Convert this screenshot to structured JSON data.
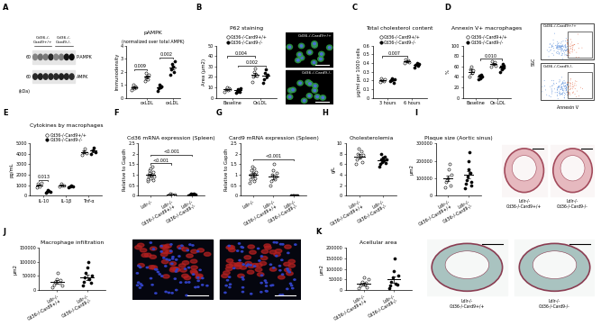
{
  "chart_data": [
    {
      "panel": "A",
      "type": "dotplot",
      "title": "pAMPK",
      "subtitle": "(normalized over total AMPK)",
      "y_label": "Immunodensity",
      "marker": "circle",
      "categories": [
        null,
        "oxLDL",
        null,
        "oxLDL"
      ],
      "series": [
        {
          "colors": [
            "#ffffff",
            "#ffffff",
            "#000000",
            "#000000"
          ],
          "values": [
            0.8,
            1.6,
            0.8,
            2.3
          ],
          "error": [
            0.06,
            0.1,
            0.07,
            0.15
          ],
          "points": [
            [
              0.6,
              0.8,
              1.0,
              0.7,
              0.9,
              0.8
            ],
            [
              1.3,
              1.5,
              1.9,
              1.6,
              1.4,
              1.8
            ],
            [
              0.5,
              0.7,
              1.0,
              0.8,
              0.9,
              0.9
            ],
            [
              1.8,
              2.2,
              2.6,
              2.4,
              2.0,
              2.8
            ]
          ]
        }
      ],
      "ylim": [
        0,
        4
      ],
      "yticks": [
        0,
        1,
        2,
        3,
        4
      ],
      "comparisons": [
        {
          "bars": [
            0,
            1
          ],
          "y": 2.2,
          "label": "0.009"
        },
        {
          "bars": [
            2,
            3
          ],
          "y": 3.1,
          "label": "0.002"
        }
      ],
      "image_labels": {
        "lanes": [
          "Cd36-/-\nCard9+/+",
          "Cd36-/-\nCard9-/-"
        ],
        "markers": [
          "60",
          "60"
        ],
        "bands": [
          "P-AMPK",
          "AMPK"
        ],
        "unit": "(kDa)"
      }
    },
    {
      "panel": "B",
      "type": "dotplot",
      "title": "P62 staining",
      "y_label": "Area (µm2)",
      "marker": "circle",
      "legend": "top",
      "categories": [
        "Baseline",
        "OxLDL"
      ],
      "series": [
        {
          "name": "Cd36-/-Card9+/+",
          "color": "#ffffff",
          "values": [
            8,
            22
          ],
          "error": [
            0.7,
            2
          ],
          "points": [
            [
              6,
              8,
              10,
              7,
              9,
              8
            ],
            [
              15,
              20,
              25,
              28,
              22,
              21
            ]
          ]
        },
        {
          "name": "Cd36-/-Card9-/-",
          "color": "#000000",
          "values": [
            7,
            21
          ],
          "error": [
            0.6,
            2.2
          ],
          "points": [
            [
              5,
              6,
              8,
              7,
              6,
              9
            ],
            [
              14,
              18,
              24,
              27,
              20,
              22
            ]
          ]
        }
      ],
      "ylim": [
        0,
        50
      ],
      "yticks": [
        0,
        10,
        20,
        30,
        40,
        50
      ],
      "comparisons": [
        {
          "bars": [
            0,
            2
          ],
          "y": 40,
          "label": "0.004"
        },
        {
          "bars": [
            1,
            3
          ],
          "y": 31,
          "label": "0.002"
        }
      ],
      "image_labels": {
        "samples": [
          "Cd36-/-Card9+/+",
          "Cd36-/-Card9-/-"
        ]
      }
    },
    {
      "panel": "C",
      "type": "dotplot",
      "title": "Total cholesterol content",
      "y_label": "µg/ml per 1000 cells",
      "marker": "circle",
      "legend": "top",
      "categories": [
        "3 hours",
        "6 hours"
      ],
      "series": [
        {
          "name": "Cd36-/-Card9+/+",
          "color": "#ffffff",
          "values": [
            0.2,
            0.42
          ],
          "error": [
            0.008,
            0.009
          ],
          "points": [
            [
              0.18,
              0.22,
              0.2,
              0.19,
              0.21
            ],
            [
              0.4,
              0.44,
              0.42,
              0.43,
              0.41
            ]
          ]
        },
        {
          "name": "Cd36-/-Card9-/-",
          "color": "#000000",
          "values": [
            0.2,
            0.38
          ],
          "error": [
            0.01,
            0.01
          ],
          "points": [
            [
              0.19,
              0.2,
              0.22,
              0.17,
              0.21
            ],
            [
              0.35,
              0.38,
              0.4,
              0.37,
              0.39
            ]
          ]
        }
      ],
      "ylim": [
        0,
        0.6
      ],
      "yticks": [
        0,
        0.1,
        0.2,
        0.3,
        0.4,
        0.5,
        0.6
      ],
      "comparisons": [
        {
          "bars": [
            0,
            2
          ],
          "y": 0.48,
          "label": "0.007"
        }
      ]
    },
    {
      "panel": "D",
      "type": "dotplot",
      "title": "Annexin V+ macrophages",
      "y_label": "%",
      "marker": "circle",
      "legend": "top",
      "categories": [
        "Baseline",
        "Ox-LDL"
      ],
      "series": [
        {
          "name": "Cd36-/-Card9+/+",
          "color": "#ffffff",
          "values": [
            50,
            65
          ],
          "error": [
            4,
            2
          ],
          "points": [
            [
              40,
              55,
              60,
              48,
              52
            ],
            [
              60,
              70,
              65,
              68,
              62
            ]
          ]
        },
        {
          "name": "Cd36-/-Card9-/-",
          "color": "#000000",
          "values": [
            40,
            58
          ],
          "error": [
            2,
            3
          ],
          "points": [
            [
              35,
              42,
              38,
              45,
              40
            ],
            [
              50,
              60,
              55,
              65,
              58,
              62
            ]
          ]
        }
      ],
      "ylim": [
        0,
        100
      ],
      "yticks": [
        0,
        20,
        40,
        60,
        80,
        100
      ],
      "comparisons": [
        {
          "bars": [
            1,
            3
          ],
          "y": 75,
          "label": "0.010"
        }
      ],
      "image_labels": {
        "samples": [
          "Cd36-/-Card9+/+",
          "Cd36-/-Card9-/-"
        ],
        "x_axis": "Annexin V",
        "y_axis": "SSC"
      }
    },
    {
      "panel": "E",
      "type": "dotplot",
      "title": "Cytokines by macrophages",
      "y_label": "pg/mL",
      "marker": "circle",
      "legend": "top",
      "categories": [
        "IL-10",
        "IL-1β",
        "Tnf-α"
      ],
      "series": [
        {
          "name": "Cd36-/-Card9+/+",
          "color": "#ffffff",
          "values": [
            1000,
            1000,
            4200
          ],
          "error": [
            70,
            45,
            130
          ],
          "points": [
            [
              800,
              1100,
              1000,
              900,
              1200
            ],
            [
              900,
              1100,
              1000,
              950
            ],
            [
              3900,
              4200,
              4500,
              4100
            ]
          ]
        },
        {
          "name": "Cd36-/-Card9-/-",
          "color": "#000000",
          "values": [
            400,
            900,
            4300
          ],
          "error": [
            40,
            45,
            130
          ],
          "points": [
            [
              300,
              400,
              500,
              450,
              350
            ],
            [
              800,
              900,
              1000,
              850
            ],
            [
              4000,
              4300,
              4600,
              4200
            ]
          ]
        }
      ],
      "ylim": [
        0,
        5000
      ],
      "yticks": [
        0,
        1000,
        2000,
        3000,
        4000,
        5000
      ],
      "comparisons": [
        {
          "bars": [
            0,
            1
          ],
          "y": 1500,
          "label": "0.013"
        }
      ]
    },
    {
      "panel": "F",
      "type": "dotplot",
      "title": "Cd36 mRNA expression (Spleen)",
      "y_label": "Relative to Gapdh",
      "marker": "circle",
      "categories": [
        "Ldlr-/-",
        "Ldlr-/-\nCd36-/-Card9+/+",
        "Ldlr-/-\nCd36-/-Card9-/-"
      ],
      "series": [
        {
          "colors": [
            "#ffffff",
            "#ffffff",
            "#000000"
          ],
          "values": [
            1.0,
            0.05,
            0.06
          ],
          "error": [
            0.06,
            0.01,
            0.01
          ],
          "points": [
            [
              0.7,
              0.8,
              0.9,
              1.0,
              1.1,
              1.2,
              1.3,
              0.85,
              0.95,
              1.05,
              1.4,
              0.75,
              1.15,
              0.9
            ],
            [
              0.02,
              0.05,
              0.08,
              0.04,
              0.06,
              0.03,
              0.07
            ],
            [
              0.03,
              0.06,
              0.09,
              0.05,
              0.04,
              0.08,
              0.07,
              0.06
            ]
          ]
        }
      ],
      "ylim": [
        0,
        2.5
      ],
      "yticks": [
        0,
        0.5,
        1,
        1.5,
        2,
        2.5
      ],
      "comparisons": [
        {
          "bars": [
            0,
            1
          ],
          "y": 1.55,
          "label": "<0.001"
        },
        {
          "bars": [
            0,
            2
          ],
          "y": 1.95,
          "label": "<0.001"
        }
      ]
    },
    {
      "panel": "G",
      "type": "dotplot",
      "title": "Card9 mRNA expression (Spleen)",
      "y_label": "Relative to Gapdh",
      "marker": "circle",
      "categories": [
        "Ldlr-/-",
        "Ldlr-/-\nCd36-/-Card9+/+",
        "Ldlr-/-\nCd36-/-Card9-/-"
      ],
      "series": [
        {
          "colors": [
            "#ffffff",
            "#ffffff",
            "#000000"
          ],
          "values": [
            1.0,
            0.9,
            0.02
          ],
          "error": [
            0.07,
            0.1,
            0.003
          ],
          "points": [
            [
              0.6,
              0.8,
              1.0,
              1.2,
              1.4,
              0.9,
              1.1,
              0.7,
              1.3,
              1.0,
              0.85,
              1.15
            ],
            [
              0.5,
              0.7,
              1.0,
              1.2,
              1.5,
              0.8,
              0.9,
              1.1
            ],
            [
              0.01,
              0.02,
              0.03,
              0.02,
              0.01
            ]
          ]
        }
      ],
      "ylim": [
        0,
        2.5
      ],
      "yticks": [
        0,
        0.5,
        1,
        1.5,
        2,
        2.5
      ],
      "comparisons": [
        {
          "bars": [
            0,
            2
          ],
          "y": 1.75,
          "label": "<0.001"
        }
      ]
    },
    {
      "panel": "H",
      "type": "dotplot",
      "title": "Cholesterolemia",
      "y_label": "g/L",
      "marker": "circle",
      "categories": [
        "Ldlr-/-\nCd36-/-Card9+/+",
        "Ldlr-/-\nCd36-/-Card9-/-"
      ],
      "series": [
        {
          "colors": [
            "#ffffff",
            "#000000"
          ],
          "values": [
            7.5,
            6.8
          ],
          "error": [
            0.4,
            0.3
          ],
          "points": [
            [
              6,
              7,
              8,
              9,
              7.5,
              8.5,
              6.5,
              7.8
            ],
            [
              5.5,
              6,
              7,
              8,
              6.5,
              7.2,
              6.8,
              7.5,
              6.2,
              7
            ]
          ]
        }
      ],
      "ylim": [
        0,
        10
      ],
      "yticks": [
        0,
        2,
        4,
        6,
        8,
        10
      ]
    },
    {
      "panel": "I",
      "type": "dotplot",
      "title": "Plaque size (Aortic sinus)",
      "y_label": "µm2",
      "marker": "circle",
      "categories": [
        "Ldlr-/-\nCd36-/-Card9+/+",
        "Ldlr-/-\nCd36-/-Card9-/-"
      ],
      "series": [
        {
          "colors": [
            "#ffffff",
            "#000000"
          ],
          "values": [
            100000,
            120000
          ],
          "error": [
            15000,
            20000
          ],
          "points": [
            [
              50000,
              80000,
              90000,
              100000,
              150000,
              180000,
              60000,
              120000
            ],
            [
              40000,
              70000,
              90000,
              110000,
              150000,
              200000,
              250000,
              130000,
              80000,
              60000
            ]
          ]
        }
      ],
      "ylim": [
        0,
        300000
      ],
      "yticks": [
        0,
        100000,
        200000,
        300000
      ],
      "image_labels": {
        "samples": [
          "Ldlr-/-\nCd36-/-Card9+/+",
          "Ldlr-/-\nCd36-/-Card9-/-"
        ]
      }
    },
    {
      "panel": "J",
      "type": "dotplot",
      "title": "Macrophage infiltration",
      "y_label": "µm2",
      "marker": "circle",
      "categories": [
        "Ldlr-/-\nCd36-/-Card9+/+",
        "Ldlr-/-\nCd36-/-Card9-/-"
      ],
      "series": [
        {
          "colors": [
            "#ffffff",
            "#000000"
          ],
          "values": [
            30000,
            45000
          ],
          "error": [
            6000,
            9000
          ],
          "points": [
            [
              10000,
              20000,
              30000,
              40000,
              60000,
              25000,
              35000,
              15000
            ],
            [
              15000,
              30000,
              45000,
              60000,
              80000,
              100000,
              40000,
              25000,
              50000
            ]
          ]
        }
      ],
      "ylim": [
        0,
        150000
      ],
      "yticks": [
        0,
        50000,
        100000,
        150000
      ]
    },
    {
      "panel": "K",
      "type": "dotplot",
      "title": "Acellular area",
      "y_label": "µm2",
      "marker": "circle",
      "categories": [
        "Ldlr-/-\nCd36-/-Card9+/+",
        "Ldlr-/-\nCd36-/-Card9-/-"
      ],
      "series": [
        {
          "colors": [
            "#ffffff",
            "#000000"
          ],
          "values": [
            30000,
            50000
          ],
          "error": [
            6000,
            15000
          ],
          "points": [
            [
              10000,
              20000,
              30000,
              40000,
              60000,
              25000,
              35000,
              15000,
              50000
            ],
            [
              10000,
              20000,
              40000,
              60000,
              90000,
              150000,
              30000,
              25000,
              70000
            ]
          ]
        }
      ],
      "ylim": [
        0,
        200000
      ],
      "yticks": [
        0,
        50000,
        100000,
        150000,
        200000
      ],
      "image_labels": {
        "samples": [
          "Ldlr-/-\nCd36-/-Card9+/+",
          "Ldlr-/-\nCd36-/-Card9-/-"
        ]
      }
    }
  ]
}
